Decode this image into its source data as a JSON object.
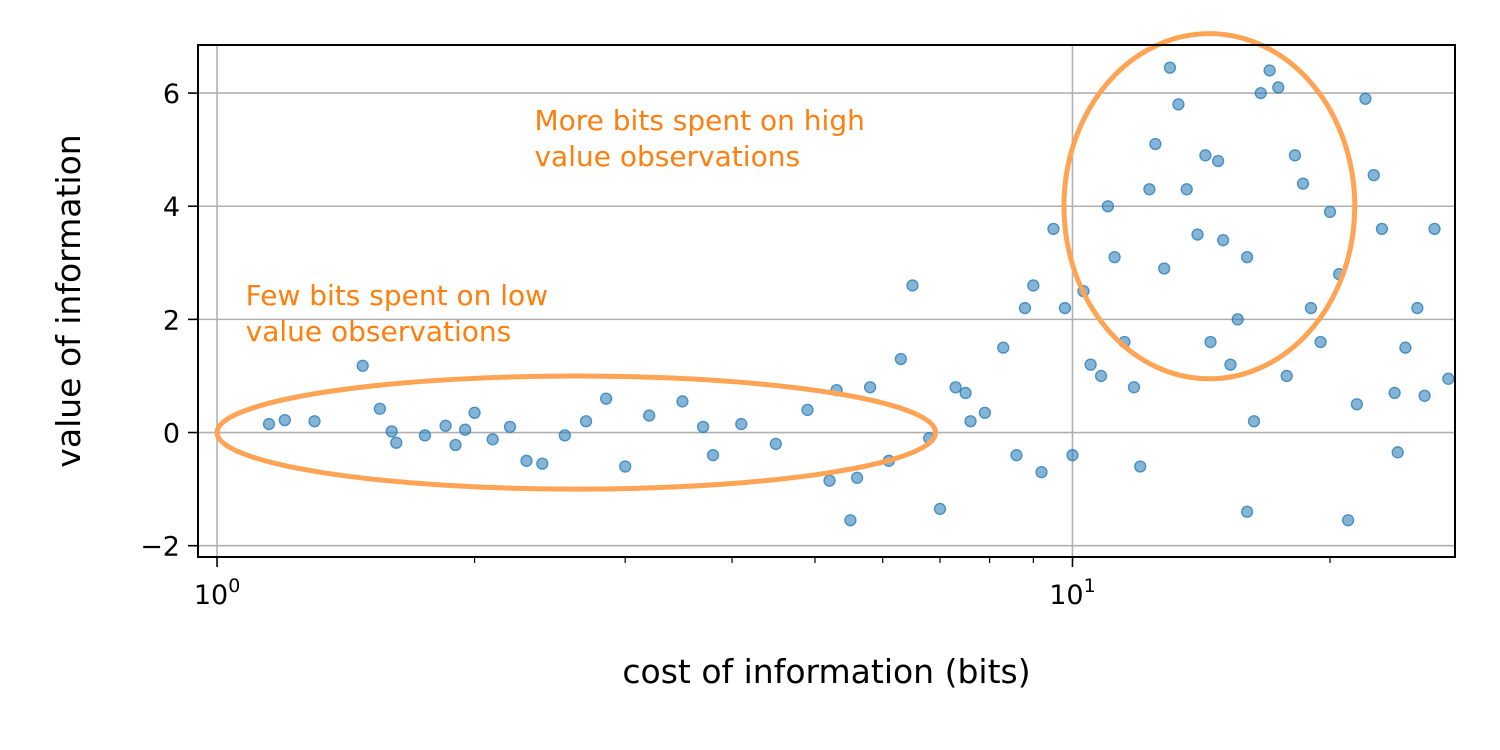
{
  "chart_data": {
    "type": "scatter",
    "title": "",
    "xlabel": "cost of information (bits)",
    "ylabel": "value of information",
    "xscale": "log",
    "xlim": [
      0.95,
      28
    ],
    "ylim": [
      -2.2,
      6.85
    ],
    "grid": true,
    "x_ticks": [
      {
        "value": 1,
        "base": "10",
        "exp": "0"
      },
      {
        "value": 10,
        "base": "10",
        "exp": "1"
      }
    ],
    "y_ticks": [
      {
        "value": -2,
        "label": "−2"
      },
      {
        "value": 0,
        "label": "0"
      },
      {
        "value": 2,
        "label": "2"
      },
      {
        "value": 4,
        "label": "4"
      },
      {
        "value": 6,
        "label": "6"
      }
    ],
    "point_color": "#1f77b4",
    "annotation_color": "#ff7f0e",
    "highlight_color": "#ffa354",
    "annotations": [
      {
        "lines": [
          "More bits spent on high",
          "value observations"
        ],
        "x": 2.35,
        "y": 5.35
      },
      {
        "lines": [
          "Few bits spent on low",
          "value observations"
        ],
        "x": 1.08,
        "y": 2.25
      }
    ],
    "ellipses": [
      {
        "cx_log": 0.42,
        "cy": 0.0,
        "rx_log": 0.42,
        "ry": 1.0
      },
      {
        "cx_log": 1.16,
        "cy": 4.0,
        "rx_log": 0.17,
        "ry": 3.05
      }
    ],
    "series": [
      {
        "points": [
          [
            1.15,
            0.15
          ],
          [
            1.2,
            0.22
          ],
          [
            1.3,
            0.2
          ],
          [
            1.48,
            1.18
          ],
          [
            1.55,
            0.42
          ],
          [
            1.6,
            0.02
          ],
          [
            1.62,
            -0.18
          ],
          [
            1.75,
            -0.05
          ],
          [
            1.85,
            0.12
          ],
          [
            1.9,
            -0.22
          ],
          [
            1.95,
            0.05
          ],
          [
            2.0,
            0.35
          ],
          [
            2.1,
            -0.12
          ],
          [
            2.2,
            0.1
          ],
          [
            2.3,
            -0.5
          ],
          [
            2.4,
            -0.55
          ],
          [
            2.55,
            -0.05
          ],
          [
            2.7,
            0.2
          ],
          [
            2.85,
            0.6
          ],
          [
            3.0,
            -0.6
          ],
          [
            3.2,
            0.3
          ],
          [
            3.5,
            0.55
          ],
          [
            3.7,
            0.1
          ],
          [
            3.8,
            -0.4
          ],
          [
            4.1,
            0.15
          ],
          [
            4.5,
            -0.2
          ],
          [
            4.9,
            0.4
          ],
          [
            5.2,
            -0.85
          ],
          [
            5.3,
            0.75
          ],
          [
            5.6,
            -0.8
          ],
          [
            5.8,
            0.8
          ],
          [
            6.3,
            1.3
          ],
          [
            6.5,
            2.6
          ],
          [
            7.0,
            -1.35
          ],
          [
            7.3,
            0.8
          ],
          [
            7.6,
            0.2
          ],
          [
            7.5,
            0.7
          ],
          [
            5.5,
            -1.55
          ],
          [
            6.1,
            -0.5
          ],
          [
            6.8,
            -0.1
          ],
          [
            7.9,
            0.35
          ],
          [
            8.3,
            1.5
          ],
          [
            8.6,
            -0.4
          ],
          [
            8.8,
            2.2
          ],
          [
            9.0,
            2.6
          ],
          [
            9.2,
            -0.7
          ],
          [
            9.5,
            3.6
          ],
          [
            9.8,
            2.2
          ],
          [
            10.0,
            -0.4
          ],
          [
            10.3,
            2.5
          ],
          [
            10.5,
            1.2
          ],
          [
            10.8,
            1.0
          ],
          [
            11.0,
            4.0
          ],
          [
            11.2,
            3.1
          ],
          [
            11.5,
            1.6
          ],
          [
            11.8,
            0.8
          ],
          [
            12.0,
            -0.6
          ],
          [
            12.3,
            4.3
          ],
          [
            12.5,
            5.1
          ],
          [
            12.8,
            2.9
          ],
          [
            13.0,
            6.45
          ],
          [
            13.3,
            5.8
          ],
          [
            13.6,
            4.3
          ],
          [
            14.0,
            3.5
          ],
          [
            14.3,
            4.9
          ],
          [
            14.5,
            1.6
          ],
          [
            14.8,
            4.8
          ],
          [
            15.0,
            3.4
          ],
          [
            15.3,
            1.2
          ],
          [
            15.6,
            2.0
          ],
          [
            16.0,
            3.1
          ],
          [
            16.3,
            0.2
          ],
          [
            16.6,
            6.0
          ],
          [
            17.0,
            6.4
          ],
          [
            17.4,
            6.1
          ],
          [
            17.8,
            1.0
          ],
          [
            18.2,
            4.9
          ],
          [
            18.6,
            4.4
          ],
          [
            19.0,
            2.2
          ],
          [
            19.5,
            1.6
          ],
          [
            20.0,
            3.9
          ],
          [
            20.5,
            2.8
          ],
          [
            21.0,
            -1.55
          ],
          [
            21.5,
            0.5
          ],
          [
            22.0,
            5.9
          ],
          [
            22.5,
            4.55
          ],
          [
            23.0,
            3.6
          ],
          [
            23.8,
            0.7
          ],
          [
            24.5,
            1.5
          ],
          [
            25.3,
            2.2
          ],
          [
            25.8,
            0.65
          ],
          [
            26.5,
            3.6
          ],
          [
            27.5,
            0.95
          ],
          [
            16.0,
            -1.4
          ],
          [
            24.0,
            -0.35
          ]
        ]
      }
    ]
  }
}
